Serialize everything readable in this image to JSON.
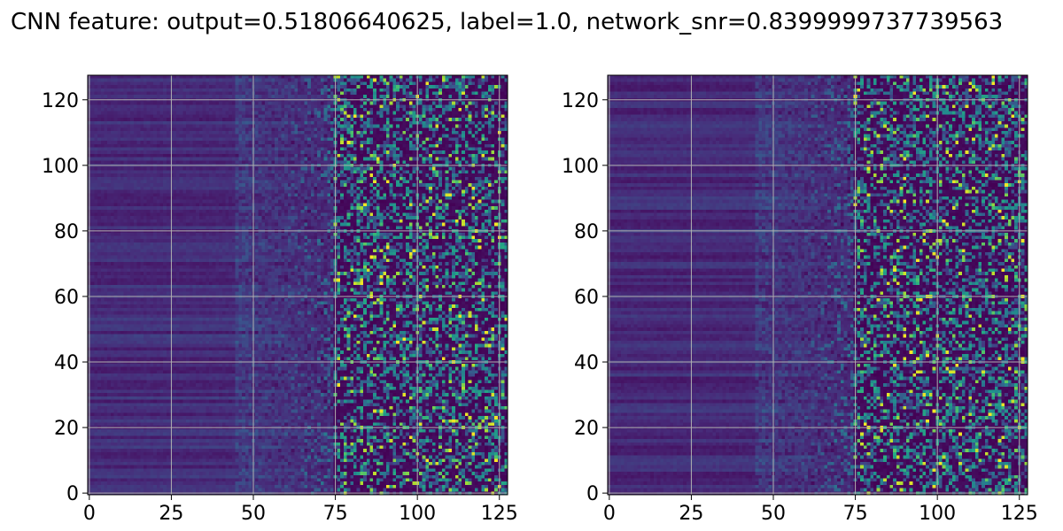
{
  "figure": {
    "suptitle": "CNN feature: output=0.51806640625, label=1.0, network_snr=0.8399999737739563"
  },
  "chart_data": [
    {
      "type": "heatmap",
      "name": "left",
      "colormap": "viridis",
      "grid": true,
      "xlim": [
        -0.5,
        127.5
      ],
      "ylim": [
        127.5,
        -0.5
      ],
      "xticks": [
        0,
        25,
        50,
        75,
        100,
        125
      ],
      "yticks": [
        0,
        20,
        40,
        60,
        80,
        100,
        120
      ],
      "rows": 128,
      "cols": 128,
      "seed": 17
    },
    {
      "type": "heatmap",
      "name": "right",
      "colormap": "viridis",
      "grid": true,
      "xlim": [
        -0.5,
        127.5
      ],
      "ylim": [
        127.5,
        -0.5
      ],
      "xticks": [
        0,
        25,
        50,
        75,
        100,
        125
      ],
      "yticks": [
        0,
        20,
        40,
        60,
        80,
        100,
        120
      ],
      "rows": 128,
      "cols": 128,
      "seed": 91
    }
  ]
}
